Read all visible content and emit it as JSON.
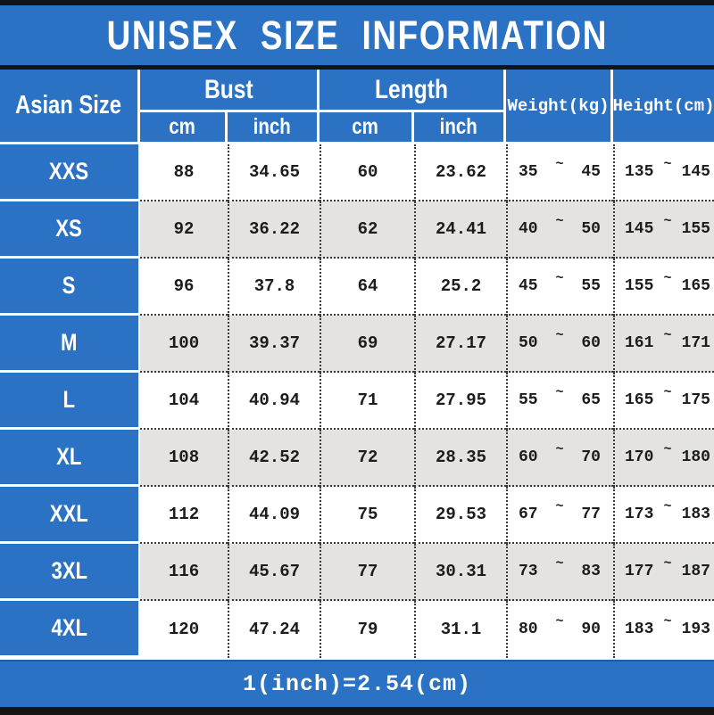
{
  "title": "UNISEX SIZE INFORMATION",
  "footer": "1(inch)=2.54(cm)",
  "colors": {
    "accent_blue": "#2b72c4",
    "bar_black": "#141414",
    "row_alt_gray": "#e4e3e1",
    "row_white": "#ffffff",
    "dotted_border": "#3a3a3a"
  },
  "table": {
    "size_col_header": "Asian Size",
    "groups": [
      {
        "label": "Bust",
        "sub": [
          "cm",
          "inch"
        ]
      },
      {
        "label": "Length",
        "sub": [
          "cm",
          "inch"
        ]
      }
    ],
    "col_weight": "Weight(kg)",
    "col_height": "Height(cm)",
    "tilde": "~",
    "rows": [
      {
        "size": "XXS",
        "bust_cm": "88",
        "bust_inch": "34.65",
        "length_cm": "60",
        "length_inch": "23.62",
        "weight_min": "35",
        "weight_max": "45",
        "height_min": "135",
        "height_max": "145"
      },
      {
        "size": "XS",
        "bust_cm": "92",
        "bust_inch": "36.22",
        "length_cm": "62",
        "length_inch": "24.41",
        "weight_min": "40",
        "weight_max": "50",
        "height_min": "145",
        "height_max": "155"
      },
      {
        "size": "S",
        "bust_cm": "96",
        "bust_inch": "37.8",
        "length_cm": "64",
        "length_inch": "25.2",
        "weight_min": "45",
        "weight_max": "55",
        "height_min": "155",
        "height_max": "165"
      },
      {
        "size": "M",
        "bust_cm": "100",
        "bust_inch": "39.37",
        "length_cm": "69",
        "length_inch": "27.17",
        "weight_min": "50",
        "weight_max": "60",
        "height_min": "161",
        "height_max": "171"
      },
      {
        "size": "L",
        "bust_cm": "104",
        "bust_inch": "40.94",
        "length_cm": "71",
        "length_inch": "27.95",
        "weight_min": "55",
        "weight_max": "65",
        "height_min": "165",
        "height_max": "175"
      },
      {
        "size": "XL",
        "bust_cm": "108",
        "bust_inch": "42.52",
        "length_cm": "72",
        "length_inch": "28.35",
        "weight_min": "60",
        "weight_max": "70",
        "height_min": "170",
        "height_max": "180"
      },
      {
        "size": "XXL",
        "bust_cm": "112",
        "bust_inch": "44.09",
        "length_cm": "75",
        "length_inch": "29.53",
        "weight_min": "67",
        "weight_max": "77",
        "height_min": "173",
        "height_max": "183"
      },
      {
        "size": "3XL",
        "bust_cm": "116",
        "bust_inch": "45.67",
        "length_cm": "77",
        "length_inch": "30.31",
        "weight_min": "73",
        "weight_max": "83",
        "height_min": "177",
        "height_max": "187"
      },
      {
        "size": "4XL",
        "bust_cm": "120",
        "bust_inch": "47.24",
        "length_cm": "79",
        "length_inch": "31.1",
        "weight_min": "80",
        "weight_max": "90",
        "height_min": "183",
        "height_max": "193"
      }
    ]
  }
}
